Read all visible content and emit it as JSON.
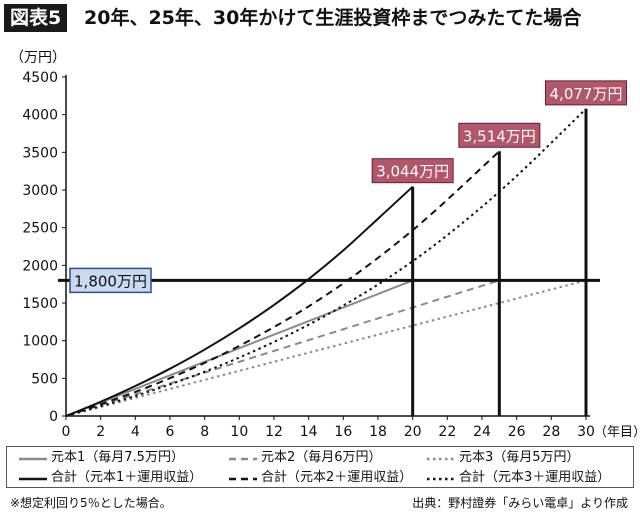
{
  "figure": {
    "tag": "図表5",
    "title": "20年、25年、30年かけて生涯投資枠までつみたてた場合",
    "footnote": "※想定利回り5％とした場合。",
    "source": "出典：野村證券「みらい電卓」より作成"
  },
  "chart_data": {
    "type": "line",
    "ylabel": "（万円）",
    "xlabel": "（年目）",
    "xlim": [
      0,
      30
    ],
    "ylim": [
      0,
      4500
    ],
    "xticks": [
      0,
      2,
      4,
      6,
      8,
      10,
      12,
      14,
      16,
      18,
      20,
      22,
      24,
      26,
      28,
      30
    ],
    "yticks": [
      0,
      500,
      1000,
      1500,
      2000,
      2500,
      3000,
      3500,
      4000,
      4500
    ],
    "x_tick_labels": [
      "0",
      "2",
      "4",
      "6",
      "8",
      "10",
      "12",
      "14",
      "16",
      "18",
      "20",
      "22",
      "24",
      "26",
      "28",
      "30"
    ],
    "y_tick_labels": [
      "0",
      "500",
      "1000",
      "1500",
      "2000",
      "2500",
      "3000",
      "3500",
      "4000",
      "4500"
    ],
    "grid": false,
    "legend_position": "bottom",
    "series": [
      {
        "name": "元本1（毎月7.5万円）",
        "style": "solid",
        "color": "#8a8a8a",
        "x": [
          0,
          20
        ],
        "y": [
          0,
          1800
        ]
      },
      {
        "name": "元本2（毎月6万円）",
        "style": "dashed",
        "color": "#8a8a8a",
        "x": [
          0,
          25
        ],
        "y": [
          0,
          1800
        ]
      },
      {
        "name": "元本3（毎月5万円）",
        "style": "dotted",
        "color": "#8a8a8a",
        "x": [
          0,
          30
        ],
        "y": [
          0,
          1800
        ]
      },
      {
        "name": "合計（元本1＋運用収益）",
        "style": "solid",
        "color": "#111111",
        "x": [
          0,
          2,
          4,
          6,
          8,
          10,
          12,
          14,
          16,
          18,
          20
        ],
        "y": [
          0,
          189,
          398,
          628,
          882,
          1164,
          1475,
          1818,
          2199,
          2619,
          3044
        ]
      },
      {
        "name": "合計（元本2＋運用収益）",
        "style": "dashed",
        "color": "#111111",
        "x": [
          0,
          5,
          10,
          15,
          20,
          25
        ],
        "y": [
          0,
          408,
          931,
          1604,
          2466,
          3514
        ]
      },
      {
        "name": "合計（元本3＋運用収益）",
        "style": "dotted",
        "color": "#111111",
        "x": [
          0,
          5,
          10,
          15,
          20,
          25,
          30
        ],
        "y": [
          0,
          340,
          776,
          1336,
          2055,
          2977,
          4077
        ]
      }
    ],
    "reference_line": {
      "y": 1800,
      "label": "1,800万円"
    },
    "annotations": [
      {
        "x": 20,
        "y": 3044,
        "label": "3,044万円"
      },
      {
        "x": 25,
        "y": 3514,
        "label": "3,514万円"
      },
      {
        "x": 30,
        "y": 4077,
        "label": "4,077万円"
      }
    ],
    "colors": {
      "callout_fill": "#b2566a",
      "ref_label_fill": "#c8d9f0",
      "ref_label_border": "#2e4f86"
    }
  }
}
